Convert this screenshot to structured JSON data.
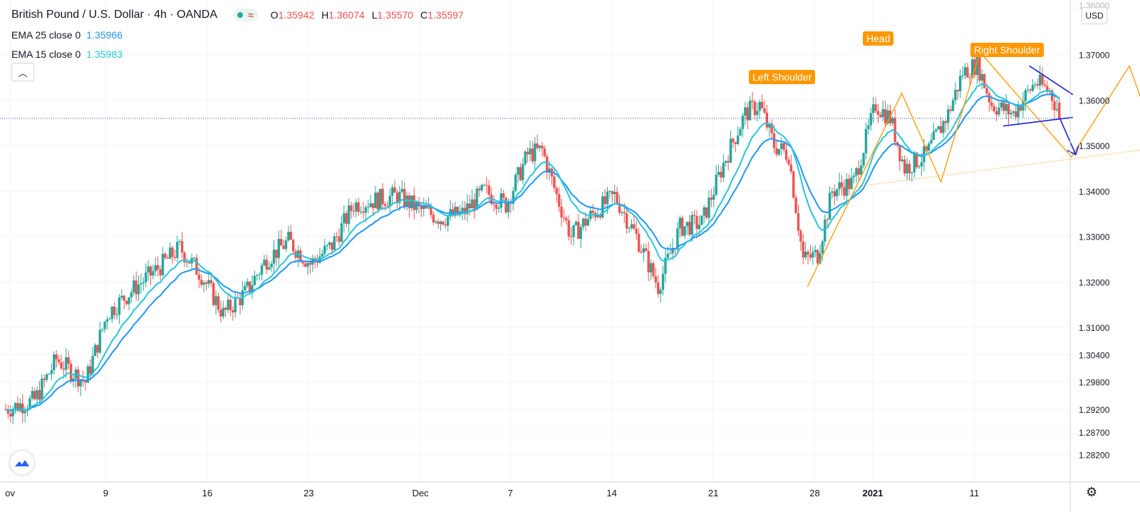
{
  "header": {
    "symbol_title": "British Pound / U.S. Dollar · 4h · OANDA",
    "ohlc": [
      {
        "key": "O",
        "value": "1.35942"
      },
      {
        "key": "H",
        "value": "1.36074"
      },
      {
        "key": "L",
        "value": "1.35570"
      },
      {
        "key": "C",
        "value": "1.35597"
      }
    ],
    "indicators": [
      {
        "name": "EMA 25 close 0",
        "value": "1.35966",
        "color": "#2196f3"
      },
      {
        "name": "EMA 15 close 0",
        "value": "1.35983",
        "color": "#26c6da"
      }
    ]
  },
  "price_scale": {
    "currency": "USD",
    "labels": [
      "1.37000",
      "1.36000",
      "1.35000",
      "1.34000",
      "1.33000",
      "1.32000",
      "1.31000",
      "1.30400",
      "1.29800",
      "1.29200",
      "1.28700",
      "1.28200"
    ],
    "top_partial": "1.38000"
  },
  "chart_data": {
    "type": "candlestick",
    "title": "British Pound / U.S. Dollar · 4h · OANDA",
    "x_tick_labels": [
      "ov",
      "9",
      "16",
      "23",
      "Dec",
      "7",
      "14",
      "21",
      "28",
      "2021",
      "11"
    ],
    "y_range": [
      1.276,
      1.382
    ],
    "current_price": 1.35597,
    "colors": {
      "up": "#26a69a",
      "down": "#ef5350",
      "ema25": "#2196f3",
      "ema15": "#26c6da",
      "pattern": "#ff9800",
      "trendline": "#1e22d8"
    },
    "closes": [
      {
        "day": 0,
        "close": 1.292
      },
      {
        "day": 2,
        "close": 1.294
      },
      {
        "day": 3.5,
        "close": 1.303
      },
      {
        "day": 5.5,
        "close": 1.298
      },
      {
        "day": 7,
        "close": 1.313
      },
      {
        "day": 9,
        "close": 1.319
      },
      {
        "day": 10.5,
        "close": 1.323
      },
      {
        "day": 12,
        "close": 1.3275
      },
      {
        "day": 13.5,
        "close": 1.3215
      },
      {
        "day": 15,
        "close": 1.313
      },
      {
        "day": 16.5,
        "close": 1.3175
      },
      {
        "day": 18,
        "close": 1.325
      },
      {
        "day": 19.5,
        "close": 1.329
      },
      {
        "day": 21,
        "close": 1.324
      },
      {
        "day": 22.5,
        "close": 1.328
      },
      {
        "day": 24,
        "close": 1.337
      },
      {
        "day": 25.5,
        "close": 1.338
      },
      {
        "day": 27,
        "close": 1.339
      },
      {
        "day": 28.5,
        "close": 1.336
      },
      {
        "day": 30,
        "close": 1.334
      },
      {
        "day": 31.5,
        "close": 1.335
      },
      {
        "day": 33,
        "close": 1.34
      },
      {
        "day": 34.5,
        "close": 1.337
      },
      {
        "day": 36,
        "close": 1.348
      },
      {
        "day": 37,
        "close": 1.349
      },
      {
        "day": 38,
        "close": 1.339
      },
      {
        "day": 39,
        "close": 1.33
      },
      {
        "day": 40.5,
        "close": 1.335
      },
      {
        "day": 42,
        "close": 1.339
      },
      {
        "day": 43.5,
        "close": 1.33
      },
      {
        "day": 45,
        "close": 1.319
      },
      {
        "day": 46.5,
        "close": 1.332
      },
      {
        "day": 48,
        "close": 1.333
      },
      {
        "day": 49.5,
        "close": 1.346
      },
      {
        "day": 51,
        "close": 1.357
      },
      {
        "day": 52,
        "close": 1.359
      },
      {
        "day": 53,
        "close": 1.35
      },
      {
        "day": 54,
        "close": 1.348
      },
      {
        "day": 55,
        "close": 1.325
      },
      {
        "day": 56,
        "close": 1.326
      },
      {
        "day": 57,
        "close": 1.34
      },
      {
        "day": 58.5,
        "close": 1.342
      },
      {
        "day": 60,
        "close": 1.359
      },
      {
        "day": 61,
        "close": 1.356
      },
      {
        "day": 62,
        "close": 1.345
      },
      {
        "day": 63.5,
        "close": 1.348
      },
      {
        "day": 65,
        "close": 1.357
      },
      {
        "day": 66,
        "close": 1.366
      },
      {
        "day": 67,
        "close": 1.368
      },
      {
        "day": 68,
        "close": 1.359
      },
      {
        "day": 69.5,
        "close": 1.357
      },
      {
        "day": 71,
        "close": 1.364
      },
      {
        "day": 72,
        "close": 1.362
      },
      {
        "day": 72.8,
        "close": 1.35597
      }
    ],
    "annotations": [
      {
        "label": "Left Shoulder",
        "color": "#ff9800"
      },
      {
        "label": "Head",
        "color": "#ff9800"
      },
      {
        "label": "Right Shoulder",
        "color": "#ff9800"
      }
    ],
    "pattern_projection": [
      {
        "day": 55.3,
        "price": 1.319
      },
      {
        "day": 61.8,
        "price": 1.3615
      },
      {
        "day": 64.5,
        "price": 1.342
      },
      {
        "day": 67.2,
        "price": 1.3705
      },
      {
        "day": 73.5,
        "price": 1.3475
      },
      {
        "day": 77.5,
        "price": 1.3675
      },
      {
        "day": 80.5,
        "price": 1.3405
      }
    ],
    "neckline": [
      {
        "day": 57.5,
        "price": 1.3405
      },
      {
        "day": 79.5,
        "price": 1.3495
      }
    ]
  }
}
